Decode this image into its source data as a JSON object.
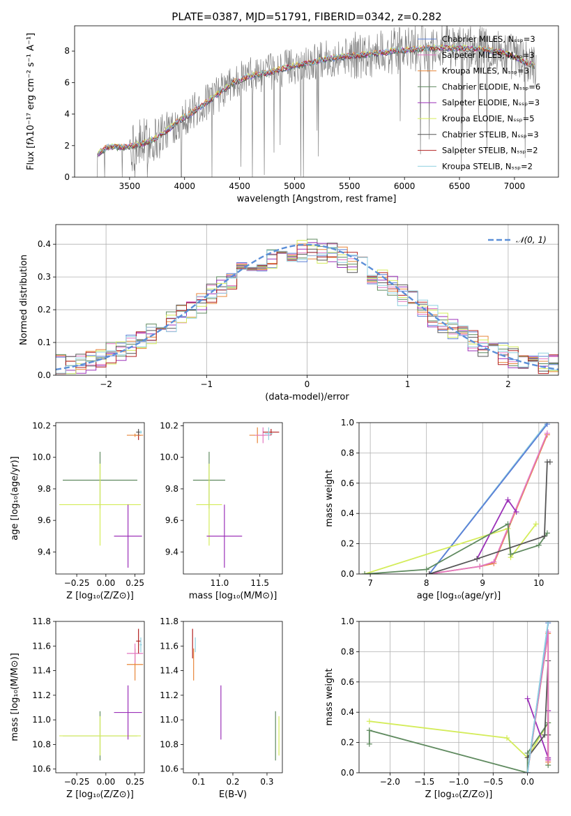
{
  "title": "PLATE=0387, MJD=51791, FIBERID=0342, z=0.282",
  "colors": {
    "Chabrier MILES": "#5b7fd6",
    "Salpeter MILES": "#e377c2",
    "Kroupa MILES": "#e8863a",
    "Chabrier ELODIE": "#5f8a5f",
    "Salpeter ELODIE": "#9b30b8",
    "Kroupa ELODIE": "#d4ec5a",
    "Chabrier STELIB": "#555555",
    "Salpeter STELIB": "#b22222",
    "Kroupa STELIB": "#8fd0e0",
    "data": "#808080",
    "normal": "#5b8fd8"
  },
  "chart_data": [
    {
      "id": "spectrum",
      "type": "line",
      "title": "PLATE=0387, MJD=51791, FIBERID=0342, z=0.282",
      "xlabel": "wavelength [Angstrom, rest frame]",
      "ylabel": "Flux [fλ10⁻¹⁷ erg cm⁻² s⁻¹ A⁻¹]",
      "xlim": [
        3000,
        7400
      ],
      "ylim": [
        0,
        9.6
      ],
      "xticks": [
        3500,
        4000,
        4500,
        5000,
        5500,
        6000,
        6500,
        7000
      ],
      "yticks": [
        0,
        2,
        4,
        6,
        8
      ],
      "grid": false,
      "legend_position": "top-right",
      "legend": [
        "Chabrier MILES, Nₛₛₚ=3",
        "Salpeter MILES, Nₛₛₚ=3",
        "Kroupa MILES, Nₛₛₚ=3",
        "Chabrier ELODIE, Nₛₛₚ=6",
        "Salpeter ELODIE, Nₛₛₚ=3",
        "Kroupa ELODIE, Nₛₛₚ=5",
        "Chabrier STELIB, Nₛₛₚ=3",
        "Salpeter STELIB, Nₛₛₚ=2",
        "Kroupa STELIB, Nₛₛₚ=2"
      ],
      "continuum": {
        "x": [
          3200,
          3300,
          3450,
          3550,
          3650,
          3750,
          3850,
          3950,
          4050,
          4150,
          4250,
          4350,
          4450,
          4550,
          4650,
          4750,
          4850,
          4950,
          5100,
          5300,
          5500,
          5700,
          5900,
          6100,
          6300,
          6500,
          6700,
          6900,
          7100,
          7200
        ],
        "y": [
          1.4,
          1.9,
          1.9,
          2.0,
          2.2,
          2.5,
          3.0,
          3.6,
          4.0,
          4.5,
          5.0,
          5.5,
          6.0,
          6.3,
          6.5,
          6.6,
          6.8,
          7.0,
          7.2,
          7.5,
          7.7,
          7.8,
          8.0,
          8.1,
          8.2,
          8.2,
          8.1,
          7.9,
          7.3,
          7.0
        ]
      }
    },
    {
      "id": "residuals",
      "type": "line",
      "xlabel": "(data-model)/error",
      "ylabel": "Normed distribution",
      "xlim": [
        -2.5,
        2.5
      ],
      "ylim": [
        0,
        0.46
      ],
      "xticks": [
        -2,
        -1,
        0,
        1,
        2
      ],
      "yticks": [
        0.0,
        0.1,
        0.2,
        0.3,
        0.4
      ],
      "grid": true,
      "legend": [
        "𝒩(0, 1)"
      ],
      "legend_position": "top-right",
      "bins": 50
    },
    {
      "id": "age_vs_Z",
      "type": "scatter",
      "xlabel": "Z [log₁₀(Z/Z⊙)]",
      "ylabel": "age  [log₁₀(age/yr)]",
      "xlim": [
        -0.43,
        0.33
      ],
      "ylim": [
        9.26,
        10.22
      ],
      "xticks": [
        -0.25,
        0.0,
        0.25
      ],
      "yticks": [
        9.4,
        9.6,
        9.8,
        10.0,
        10.2
      ],
      "points": [
        {
          "model": "Chabrier ELODIE",
          "x": -0.05,
          "xerr": 0.32,
          "y": 9.855,
          "yerr": 0.18
        },
        {
          "model": "Kroupa ELODIE",
          "x": -0.05,
          "xerr": 0.35,
          "y": 9.7,
          "yerr": 0.26
        },
        {
          "model": "Salpeter ELODIE",
          "x": 0.19,
          "xerr": 0.12,
          "y": 9.5,
          "yerr": 0.2
        },
        {
          "model": "Salpeter STELIB",
          "x": 0.28,
          "xerr": 0.02,
          "y": 10.14,
          "yerr": 0.03
        },
        {
          "model": "Kroupa MILES",
          "x": 0.25,
          "xerr": 0.07,
          "y": 10.14,
          "yerr": 0.01
        },
        {
          "model": "Chabrier STELIB",
          "x": 0.28,
          "xerr": 0.02,
          "y": 10.16,
          "yerr": 0.02
        },
        {
          "model": "Kroupa STELIB",
          "x": 0.3,
          "xerr": 0.01,
          "y": 10.16,
          "yerr": 0.01
        }
      ]
    },
    {
      "id": "age_vs_mass",
      "type": "scatter",
      "xlabel": "mass [log₁₀(M/M⊙)]",
      "ylabel": "",
      "xlim": [
        10.55,
        11.78
      ],
      "ylim": [
        9.26,
        10.22
      ],
      "xticks": [
        11.0,
        11.5
      ],
      "yticks": [
        9.4,
        9.6,
        9.8,
        10.0,
        10.2
      ],
      "points": [
        {
          "model": "Chabrier ELODIE",
          "x": 10.87,
          "xerr": 0.2,
          "y": 9.855,
          "yerr": 0.18
        },
        {
          "model": "Kroupa ELODIE",
          "x": 10.87,
          "xerr": 0.16,
          "y": 9.7,
          "yerr": 0.26
        },
        {
          "model": "Salpeter ELODIE",
          "x": 11.06,
          "xerr": 0.22,
          "y": 9.5,
          "yerr": 0.2
        },
        {
          "model": "Kroupa MILES",
          "x": 11.47,
          "xerr": 0.1,
          "y": 10.14,
          "yerr": 0.05
        },
        {
          "model": "Salpeter MILES",
          "x": 11.54,
          "xerr": 0.1,
          "y": 10.14,
          "yerr": 0.05
        },
        {
          "model": "Salpeter STELIB",
          "x": 11.64,
          "xerr": 0.1,
          "y": 10.16,
          "yerr": 0.02
        },
        {
          "model": "Kroupa STELIB",
          "x": 11.61,
          "xerr": 0.05,
          "y": 10.15,
          "yerr": 0.04
        }
      ]
    },
    {
      "id": "mass_weight_vs_age",
      "type": "line",
      "xlabel": "age  [log₁₀(age/yr)]",
      "ylabel": "mass weight",
      "xlim": [
        6.8,
        10.35
      ],
      "ylim": [
        0,
        1.0
      ],
      "xticks": [
        7,
        8,
        9,
        10
      ],
      "yticks": [
        0.0,
        0.2,
        0.4,
        0.6,
        0.8,
        1.0
      ],
      "grid": true,
      "series": [
        {
          "model": "Kroupa STELIB",
          "x": [
            8.05,
            10.15
          ],
          "y": [
            0.0,
            1.0
          ]
        },
        {
          "model": "Chabrier MILES",
          "x": [
            8.05,
            10.15
          ],
          "y": [
            0.0,
            0.99
          ]
        },
        {
          "model": "Kroupa MILES",
          "x": [
            8.05,
            8.95,
            9.2,
            10.15
          ],
          "y": [
            0.0,
            0.05,
            0.07,
            0.92
          ]
        },
        {
          "model": "Salpeter MILES",
          "x": [
            8.05,
            8.95,
            9.2,
            10.15
          ],
          "y": [
            0.0,
            0.05,
            0.08,
            0.93
          ]
        },
        {
          "model": "Salpeter ELODIE",
          "x": [
            8.9,
            9.45,
            9.6
          ],
          "y": [
            0.1,
            0.49,
            0.41
          ]
        },
        {
          "model": "Kroupa ELODIE",
          "x": [
            6.9,
            9.45,
            9.5,
            9.95
          ],
          "y": [
            0.0,
            0.3,
            0.11,
            0.33
          ]
        },
        {
          "model": "Chabrier ELODIE",
          "x": [
            6.9,
            8.0,
            9.45,
            9.5,
            10.0,
            10.15
          ],
          "y": [
            0.0,
            0.03,
            0.33,
            0.13,
            0.19,
            0.27
          ]
        },
        {
          "model": "Chabrier STELIB",
          "x": [
            8.05,
            8.9,
            10.1,
            10.15,
            10.2
          ],
          "y": [
            0.0,
            0.1,
            0.25,
            0.74,
            0.74
          ]
        }
      ]
    },
    {
      "id": "mass_vs_Z",
      "type": "scatter",
      "xlabel": "Z [log₁₀(Z/Z⊙)]",
      "ylabel": "mass [log₁₀(M/M⊙)]",
      "xlim": [
        -0.43,
        0.33
      ],
      "ylim": [
        10.57,
        11.8
      ],
      "xticks": [
        -0.25,
        0.0,
        0.25
      ],
      "yticks": [
        10.6,
        10.8,
        11.0,
        11.2,
        11.4,
        11.6,
        11.8
      ],
      "points": [
        {
          "model": "Chabrier ELODIE",
          "x": -0.05,
          "xerr": 0.32,
          "y": 10.87,
          "yerr": 0.2
        },
        {
          "model": "Kroupa ELODIE",
          "x": -0.05,
          "xerr": 0.35,
          "y": 10.87,
          "yerr": 0.16
        },
        {
          "model": "Salpeter ELODIE",
          "x": 0.19,
          "xerr": 0.12,
          "y": 11.06,
          "yerr": 0.22
        },
        {
          "model": "Kroupa MILES",
          "x": 0.25,
          "xerr": 0.07,
          "y": 11.45,
          "yerr": 0.13
        },
        {
          "model": "Salpeter MILES",
          "x": 0.25,
          "xerr": 0.07,
          "y": 11.54,
          "yerr": 0.08
        },
        {
          "model": "Salpeter STELIB",
          "x": 0.28,
          "xerr": 0.02,
          "y": 11.64,
          "yerr": 0.1
        },
        {
          "model": "Kroupa STELIB",
          "x": 0.3,
          "xerr": 0.01,
          "y": 11.61,
          "yerr": 0.06
        }
      ]
    },
    {
      "id": "mass_vs_EBV",
      "type": "scatter",
      "xlabel": "E(B-V)",
      "ylabel": "",
      "xlim": [
        0.055,
        0.345
      ],
      "ylim": [
        10.57,
        11.8
      ],
      "xticks": [
        0.1,
        0.2,
        0.3
      ],
      "yticks": [
        10.6,
        10.8,
        11.0,
        11.2,
        11.4,
        11.6,
        11.8
      ],
      "points": [
        {
          "model": "Salpeter STELIB",
          "x": 0.082,
          "xerr": 0.0,
          "y": 11.62,
          "yerr": 0.12
        },
        {
          "model": "Kroupa MILES",
          "x": 0.085,
          "xerr": 0.0,
          "y": 11.45,
          "yerr": 0.13
        },
        {
          "model": "Kroupa STELIB",
          "x": 0.09,
          "xerr": 0.0,
          "y": 11.61,
          "yerr": 0.06
        },
        {
          "model": "Salpeter ELODIE",
          "x": 0.165,
          "xerr": 0.0,
          "y": 11.06,
          "yerr": 0.22
        },
        {
          "model": "Chabrier ELODIE",
          "x": 0.325,
          "xerr": 0.0,
          "y": 10.87,
          "yerr": 0.2
        },
        {
          "model": "Kroupa ELODIE",
          "x": 0.335,
          "xerr": 0.0,
          "y": 10.87,
          "yerr": 0.16
        }
      ]
    },
    {
      "id": "mass_weight_vs_Z",
      "type": "line",
      "xlabel": "Z [log₁₀(Z/Z⊙)]",
      "ylabel": "mass weight",
      "xlim": [
        -2.45,
        0.45
      ],
      "ylim": [
        0,
        1.0
      ],
      "xticks": [
        -2.0,
        -1.5,
        -1.0,
        -0.5,
        0.0
      ],
      "yticks": [
        0.0,
        0.2,
        0.4,
        0.6,
        0.8,
        1.0
      ],
      "grid": true,
      "series": [
        {
          "model": "Kroupa ELODIE",
          "x": [
            -2.3,
            -0.3,
            0.0,
            0.3
          ],
          "y": [
            0.34,
            0.23,
            0.1,
            0.33
          ]
        },
        {
          "model": "Chabrier ELODIE",
          "x": [
            -2.3,
            -2.3,
            0.0,
            0.0,
            0.3,
            0.3
          ],
          "y": [
            0.19,
            0.28,
            0.0,
            0.13,
            0.33,
            0.05
          ]
        },
        {
          "model": "Salpeter ELODIE",
          "x": [
            0.0,
            0.3,
            0.3,
            0.3
          ],
          "y": [
            0.49,
            0.1,
            0.41,
            0.09
          ]
        },
        {
          "model": "Chabrier STELIB",
          "x": [
            0.0,
            0.25,
            0.3,
            0.3
          ],
          "y": [
            0.1,
            0.25,
            0.74,
            0.25
          ]
        },
        {
          "model": "Kroupa MILES",
          "x": [
            0.0,
            0.3,
            0.3
          ],
          "y": [
            0.0,
            0.92,
            0.07
          ]
        },
        {
          "model": "Salpeter MILES",
          "x": [
            0.0,
            0.3,
            0.3
          ],
          "y": [
            0.0,
            0.93,
            0.08
          ]
        },
        {
          "model": "Chabrier MILES",
          "x": [
            0.0,
            0.3
          ],
          "y": [
            0.0,
            0.99
          ]
        },
        {
          "model": "Kroupa STELIB",
          "x": [
            0.0,
            0.3
          ],
          "y": [
            0.0,
            1.0
          ]
        }
      ]
    }
  ]
}
